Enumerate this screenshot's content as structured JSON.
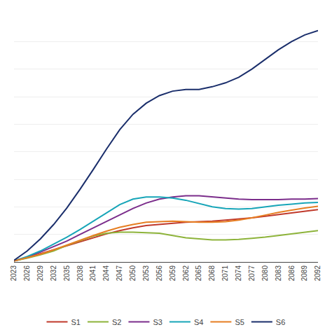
{
  "chart_data": {
    "type": "line",
    "x": [
      2023,
      2026,
      2029,
      2032,
      2035,
      2038,
      2041,
      2044,
      2047,
      2050,
      2053,
      2056,
      2059,
      2062,
      2065,
      2068,
      2071,
      2074,
      2077,
      2080,
      2083,
      2086,
      2089,
      2092
    ],
    "series": [
      {
        "name": "S1",
        "color": "#c0392b",
        "values": [
          0.02,
          0.08,
          0.15,
          0.22,
          0.3,
          0.37,
          0.44,
          0.51,
          0.57,
          0.62,
          0.66,
          0.68,
          0.7,
          0.72,
          0.73,
          0.74,
          0.76,
          0.78,
          0.8,
          0.83,
          0.86,
          0.89,
          0.92,
          0.95
        ]
      },
      {
        "name": "S2",
        "color": "#8db33a",
        "values": [
          0.02,
          0.07,
          0.13,
          0.2,
          0.3,
          0.39,
          0.47,
          0.52,
          0.54,
          0.54,
          0.53,
          0.52,
          0.48,
          0.44,
          0.42,
          0.4,
          0.4,
          0.41,
          0.43,
          0.45,
          0.48,
          0.51,
          0.54,
          0.57
        ]
      },
      {
        "name": "S3",
        "color": "#7b2d8b",
        "values": [
          0.02,
          0.09,
          0.18,
          0.28,
          0.38,
          0.5,
          0.62,
          0.74,
          0.86,
          0.97,
          1.07,
          1.14,
          1.18,
          1.2,
          1.2,
          1.18,
          1.16,
          1.14,
          1.13,
          1.13,
          1.13,
          1.14,
          1.14,
          1.15
        ]
      },
      {
        "name": "S4",
        "color": "#17a5b8",
        "values": [
          0.02,
          0.1,
          0.2,
          0.32,
          0.45,
          0.59,
          0.74,
          0.9,
          1.04,
          1.14,
          1.18,
          1.18,
          1.16,
          1.12,
          1.06,
          1.0,
          0.97,
          0.96,
          0.97,
          1.0,
          1.03,
          1.05,
          1.07,
          1.08
        ]
      },
      {
        "name": "S5",
        "color": "#e67e22",
        "values": [
          0.02,
          0.08,
          0.14,
          0.22,
          0.31,
          0.4,
          0.48,
          0.56,
          0.63,
          0.68,
          0.72,
          0.73,
          0.74,
          0.73,
          0.72,
          0.72,
          0.73,
          0.76,
          0.8,
          0.85,
          0.9,
          0.94,
          0.98,
          1.01
        ]
      },
      {
        "name": "S6",
        "color": "#1a2e6b",
        "values": [
          0.03,
          0.2,
          0.42,
          0.68,
          0.98,
          1.32,
          1.68,
          2.05,
          2.4,
          2.68,
          2.88,
          3.02,
          3.1,
          3.13,
          3.13,
          3.18,
          3.25,
          3.35,
          3.5,
          3.68,
          3.85,
          4.0,
          4.12,
          4.2
        ]
      }
    ],
    "xlim": [
      2023,
      2092
    ],
    "xticks": [
      2023,
      2026,
      2029,
      2032,
      2035,
      2038,
      2041,
      2044,
      2047,
      2050,
      2053,
      2056,
      2059,
      2062,
      2065,
      2068,
      2071,
      2074,
      2077,
      2080,
      2083,
      2086,
      2089,
      2092
    ],
    "ylim": [
      0,
      4.5
    ],
    "yticks": [
      0,
      0.5,
      1,
      1.5,
      2,
      2.5,
      3,
      3.5,
      4,
      4.5
    ],
    "grid": true,
    "tick_labels": "x",
    "legend": "bottom"
  }
}
